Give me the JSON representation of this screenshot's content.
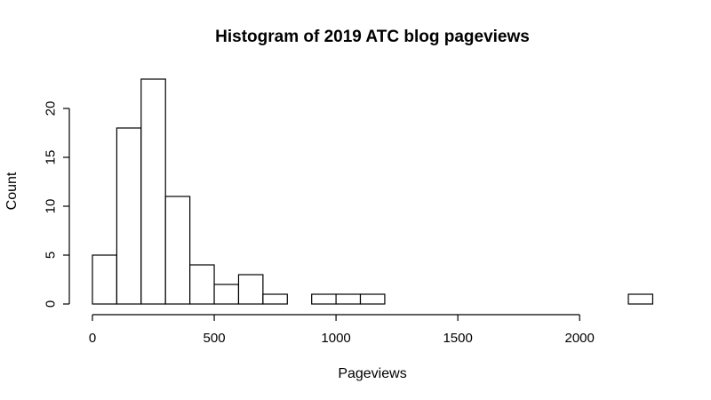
{
  "chart_data": {
    "type": "bar",
    "title": "Histogram of 2019 ATC blog pageviews",
    "xlabel": "Pageviews",
    "ylabel": "Count",
    "bin_width": 100,
    "bins": [
      {
        "start": 0,
        "end": 100,
        "count": 5
      },
      {
        "start": 100,
        "end": 200,
        "count": 18
      },
      {
        "start": 200,
        "end": 300,
        "count": 23
      },
      {
        "start": 300,
        "end": 400,
        "count": 11
      },
      {
        "start": 400,
        "end": 500,
        "count": 4
      },
      {
        "start": 500,
        "end": 600,
        "count": 2
      },
      {
        "start": 600,
        "end": 700,
        "count": 3
      },
      {
        "start": 700,
        "end": 800,
        "count": 1
      },
      {
        "start": 800,
        "end": 900,
        "count": 0
      },
      {
        "start": 900,
        "end": 1000,
        "count": 1
      },
      {
        "start": 1000,
        "end": 1100,
        "count": 1
      },
      {
        "start": 1100,
        "end": 1200,
        "count": 1
      },
      {
        "start": 1200,
        "end": 1300,
        "count": 0
      },
      {
        "start": 1300,
        "end": 1400,
        "count": 0
      },
      {
        "start": 1400,
        "end": 1500,
        "count": 0
      },
      {
        "start": 1500,
        "end": 1600,
        "count": 0
      },
      {
        "start": 1600,
        "end": 1700,
        "count": 0
      },
      {
        "start": 1700,
        "end": 1800,
        "count": 0
      },
      {
        "start": 1800,
        "end": 1900,
        "count": 0
      },
      {
        "start": 1900,
        "end": 2000,
        "count": 0
      },
      {
        "start": 2000,
        "end": 2100,
        "count": 0
      },
      {
        "start": 2100,
        "end": 2200,
        "count": 0
      },
      {
        "start": 2200,
        "end": 2300,
        "count": 1
      }
    ],
    "xlim": [
      0,
      2300
    ],
    "ylim": [
      0,
      23
    ],
    "x_ticks": [
      0,
      500,
      1000,
      1500,
      2000
    ],
    "y_ticks": [
      0,
      5,
      10,
      15,
      20
    ],
    "grid": false,
    "colors": {
      "bar_fill": "#ffffff",
      "bar_stroke": "#000000"
    }
  }
}
